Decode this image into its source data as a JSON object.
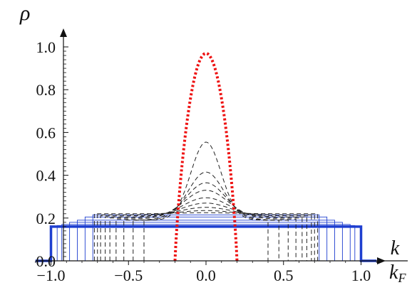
{
  "chart_data": {
    "type": "line",
    "title": "",
    "ylabel": "ρ",
    "xlabel": {
      "numerator": "k",
      "denominator": "k",
      "denominator_sub": "F"
    },
    "xlim": [
      -1.1,
      1.1
    ],
    "ylim": [
      0,
      1.0
    ],
    "x_ticks": [
      {
        "value": -1.0,
        "label": "−1.0"
      },
      {
        "value": -0.5,
        "label": "−0.5"
      },
      {
        "value": 0.0,
        "label": "0.0"
      },
      {
        "value": 0.5,
        "label": "0.5"
      },
      {
        "value": 1.0,
        "label": "1.0"
      }
    ],
    "y_ticks": [
      {
        "value": 0.0,
        "label": "0.0"
      },
      {
        "value": 0.2,
        "label": "0.2"
      },
      {
        "value": 0.4,
        "label": "0.4"
      },
      {
        "value": 0.6,
        "label": "0.6"
      },
      {
        "value": 0.8,
        "label": "0.8"
      },
      {
        "value": 1.0,
        "label": "1.0"
      }
    ],
    "colors": {
      "blue": "#1f3fd0",
      "red": "#ee1111",
      "black": "#222222"
    },
    "series": [
      {
        "style": "blue-thick",
        "points": [
          [
            -1.1,
            0
          ],
          [
            -1.0,
            0
          ],
          [
            -1.0,
            0.16
          ],
          [
            1.0,
            0.16
          ],
          [
            1.0,
            0
          ],
          [
            1.1,
            0
          ]
        ]
      },
      {
        "style": "blue-thin",
        "points": [
          [
            -0.96,
            0
          ],
          [
            -0.96,
            0.165
          ],
          [
            0.96,
            0.165
          ],
          [
            0.96,
            0
          ]
        ]
      },
      {
        "style": "blue-thin",
        "points": [
          [
            -0.93,
            0
          ],
          [
            -0.93,
            0.17
          ],
          [
            0.93,
            0.17
          ],
          [
            0.93,
            0
          ]
        ]
      },
      {
        "style": "blue-thin",
        "points": [
          [
            -0.88,
            0
          ],
          [
            -0.88,
            0.18
          ],
          [
            0.88,
            0.18
          ],
          [
            0.88,
            0
          ]
        ]
      },
      {
        "style": "blue-thin",
        "points": [
          [
            -0.83,
            0
          ],
          [
            -0.83,
            0.19
          ],
          [
            0.83,
            0.19
          ],
          [
            0.83,
            0
          ]
        ]
      },
      {
        "style": "blue-thin",
        "points": [
          [
            -0.78,
            0
          ],
          [
            -0.78,
            0.205
          ],
          [
            0.78,
            0.205
          ],
          [
            0.78,
            0
          ]
        ]
      },
      {
        "style": "blue-thin",
        "points": [
          [
            -0.73,
            0
          ],
          [
            -0.73,
            0.215
          ],
          [
            0.73,
            0.215
          ],
          [
            0.73,
            0
          ]
        ]
      },
      {
        "style": "black-dashed",
        "edge": 0.72,
        "center": 0.225,
        "edgeValue": 0.22
      },
      {
        "style": "black-dashed",
        "edge": 0.7,
        "center": 0.235,
        "edgeValue": 0.215
      },
      {
        "style": "black-dashed",
        "edge": 0.68,
        "center": 0.25,
        "edgeValue": 0.21
      },
      {
        "style": "black-dashed",
        "edge": 0.65,
        "center": 0.27,
        "edgeValue": 0.205
      },
      {
        "style": "black-dashed",
        "edge": 0.62,
        "center": 0.295,
        "edgeValue": 0.2
      },
      {
        "style": "black-dashed",
        "edge": 0.58,
        "center": 0.33,
        "edgeValue": 0.195
      },
      {
        "style": "black-dashed",
        "edge": 0.53,
        "center": 0.365,
        "edgeValue": 0.19
      },
      {
        "style": "black-dashed",
        "edge": 0.47,
        "center": 0.415,
        "edgeValue": 0.19
      },
      {
        "style": "black-dashed",
        "edge": 0.4,
        "center": 0.555,
        "edgeValue": 0.19
      },
      {
        "style": "red-dotted",
        "edge": 0.2,
        "center": 0.97
      }
    ]
  }
}
